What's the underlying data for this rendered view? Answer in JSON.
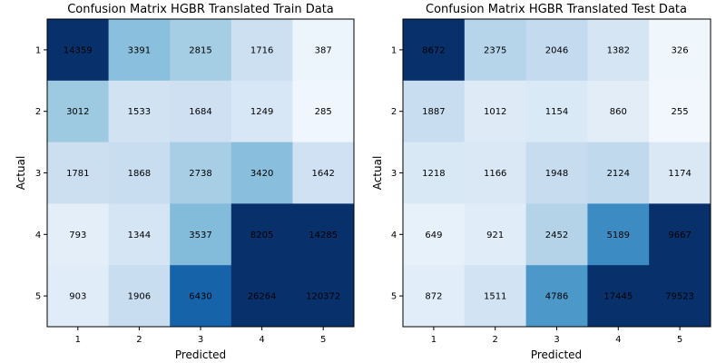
{
  "chart_data": [
    {
      "type": "heatmap",
      "title": "Confusion Matrix HGBR Translated Train Data",
      "xlabel": "Predicted",
      "ylabel": "Actual",
      "x_ticks": [
        "1",
        "2",
        "3",
        "4",
        "5"
      ],
      "y_ticks": [
        "1",
        "2",
        "3",
        "4",
        "5"
      ],
      "colormap": "Blues",
      "color_max": 8000,
      "values": [
        [
          14359,
          3391,
          2815,
          1716,
          387
        ],
        [
          3012,
          1533,
          1684,
          1249,
          285
        ],
        [
          1781,
          1868,
          2738,
          3420,
          1642
        ],
        [
          793,
          1344,
          3537,
          8205,
          14285
        ],
        [
          903,
          1906,
          6430,
          26264,
          120372
        ]
      ]
    },
    {
      "type": "heatmap",
      "title": "Confusion Matrix HGBR Translated Test Data",
      "xlabel": "Predicted",
      "ylabel": "Actual",
      "x_ticks": [
        "1",
        "2",
        "3",
        "4",
        "5"
      ],
      "y_ticks": [
        "1",
        "2",
        "3",
        "4",
        "5"
      ],
      "colormap": "Blues",
      "color_max": 8000,
      "values": [
        [
          8672,
          2375,
          2046,
          1382,
          326
        ],
        [
          1887,
          1012,
          1154,
          860,
          255
        ],
        [
          1218,
          1166,
          1948,
          2124,
          1174
        ],
        [
          649,
          921,
          2452,
          5189,
          9667
        ],
        [
          872,
          1511,
          4786,
          17445,
          79523
        ]
      ]
    }
  ]
}
